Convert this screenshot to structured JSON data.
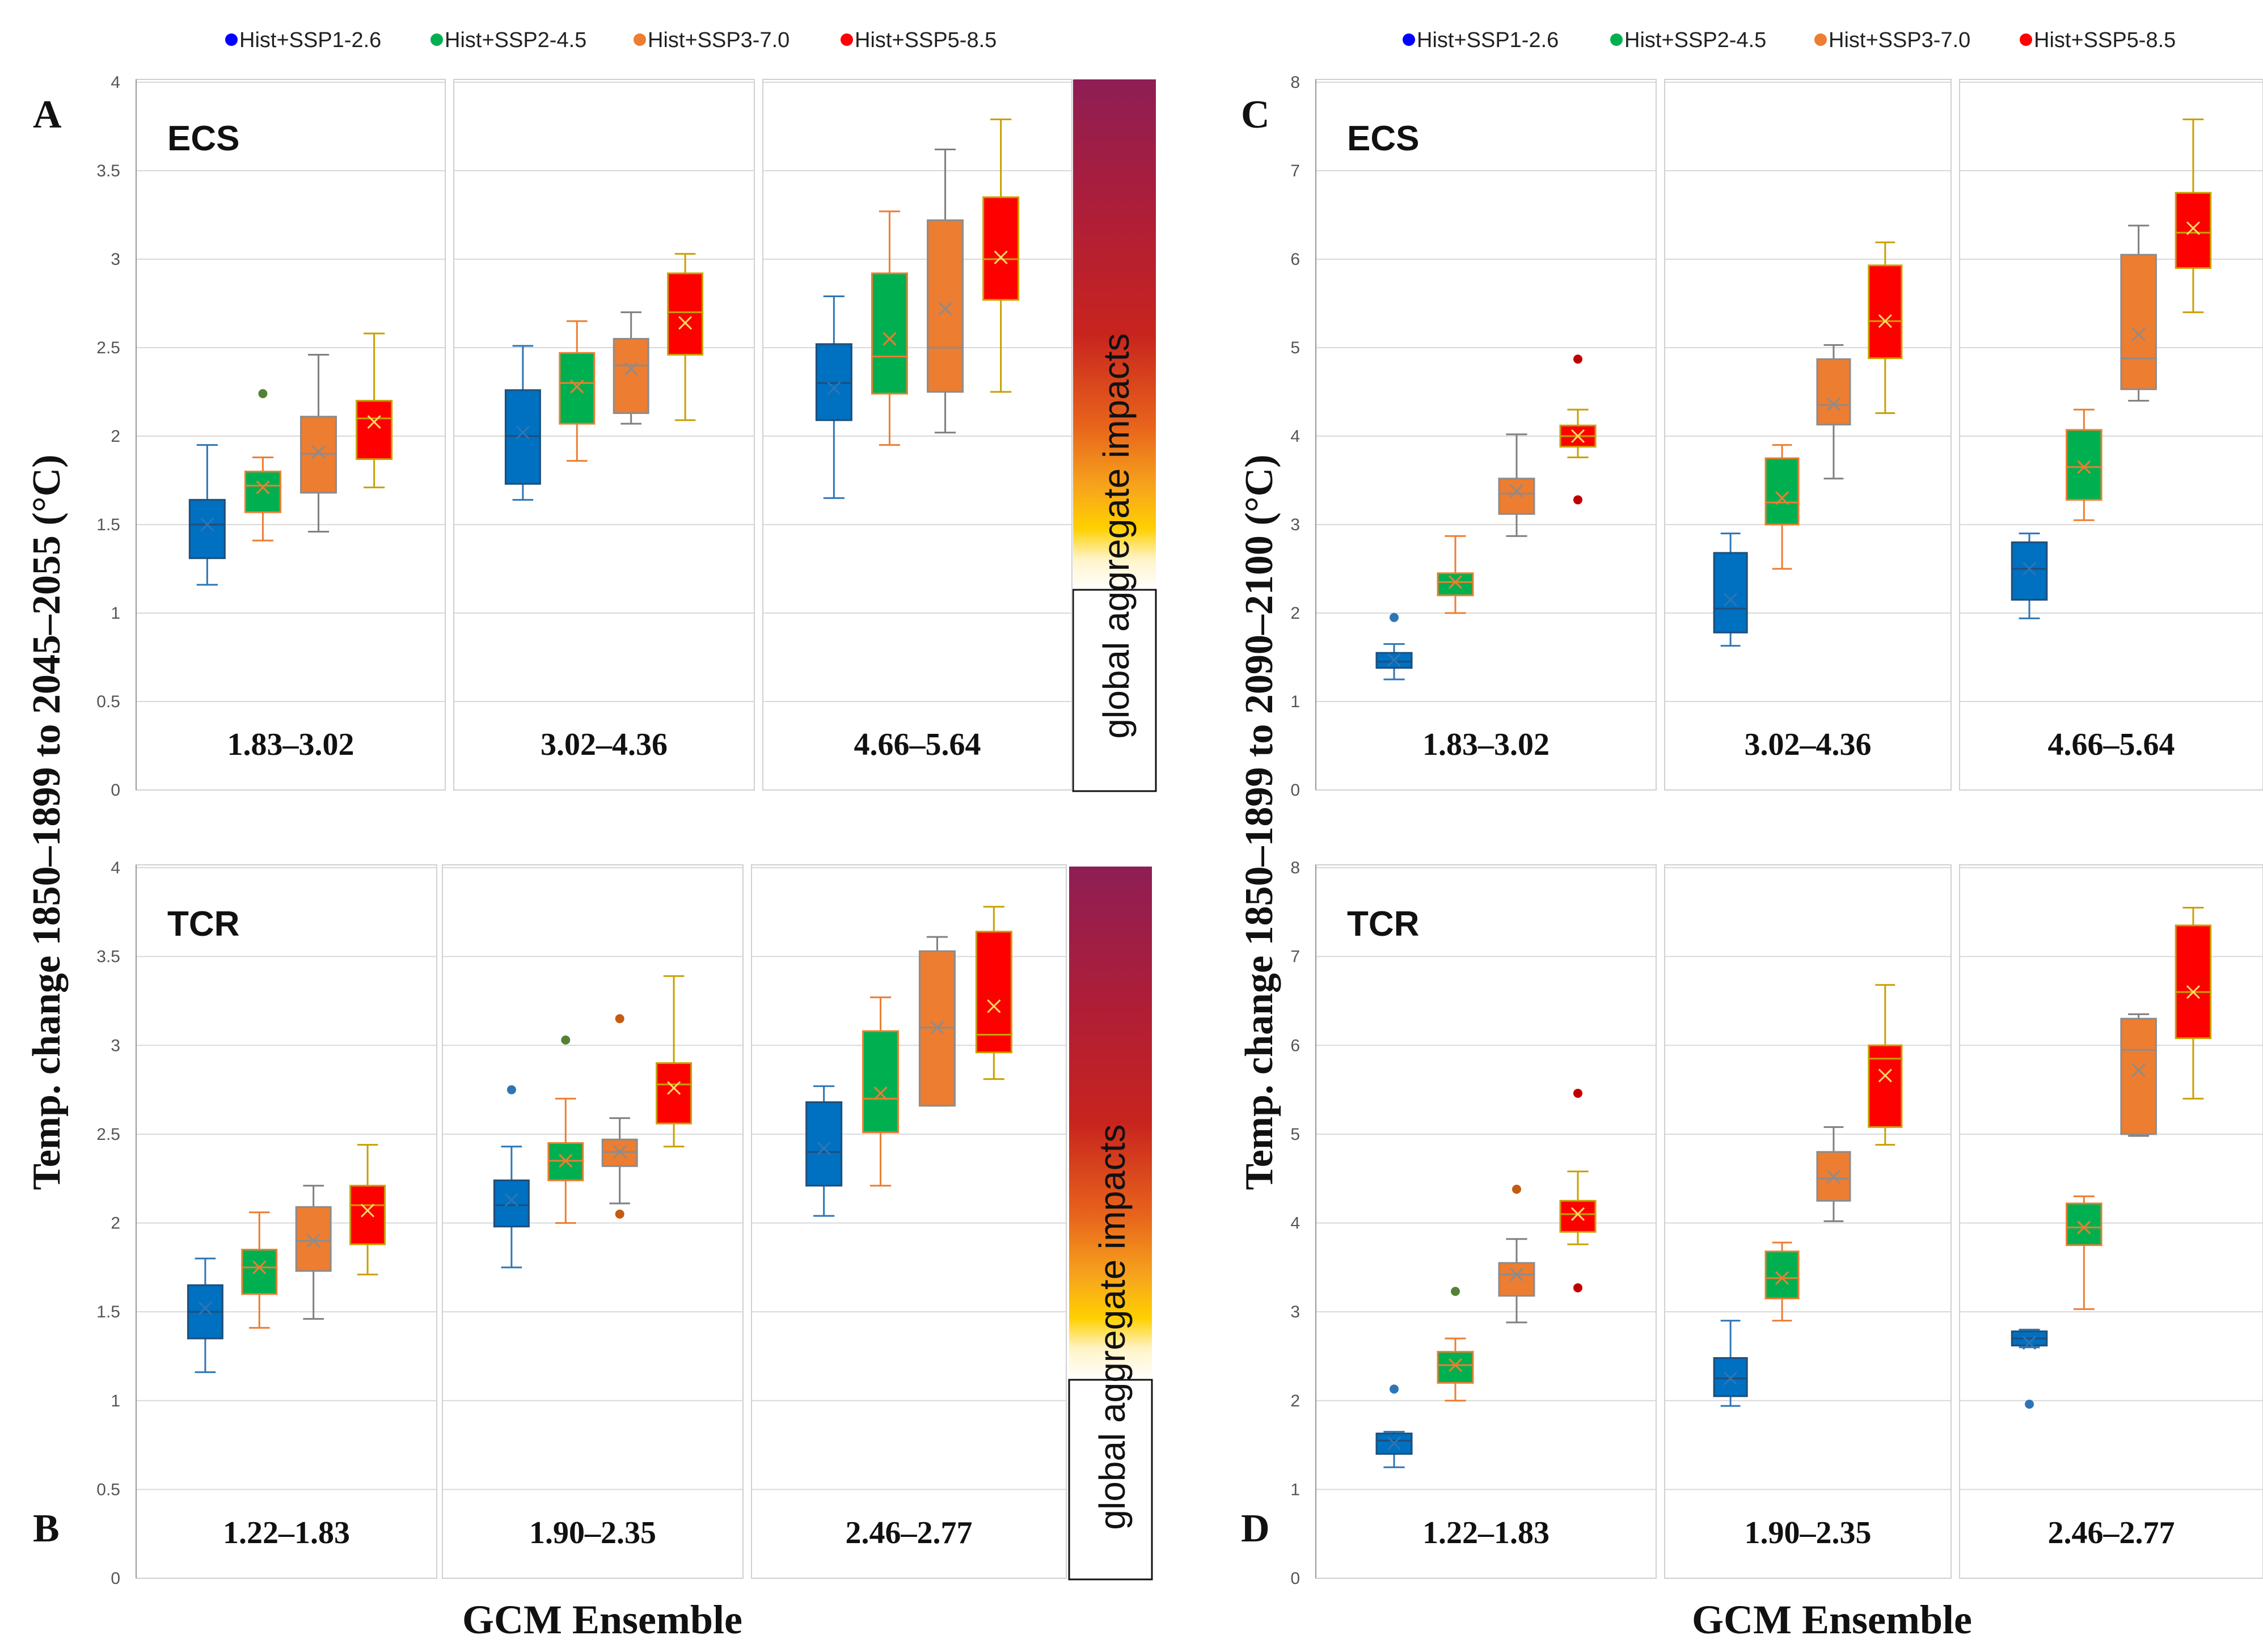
{
  "legend": [
    {
      "label": "Hist+SSP1-2.6",
      "color": "#0070C0"
    },
    {
      "label": "Hist+SSP2-4.5",
      "color": "#00B050"
    },
    {
      "label": "Hist+SSP3-7.0",
      "color": "#ED7D31"
    },
    {
      "label": "Hist+SSP5-8.5",
      "color": "#FF0000"
    }
  ],
  "yaxis_left": "Temp. change 1850–1899 to 2045–2055 (°C)",
  "yaxis_right": "Temp. change 1850–1899 to 2090–2100 (°C)",
  "xaxis_label": "GCM Ensemble",
  "impact_label": "global aggregate impacts",
  "chart_data": [
    {
      "panel": "A",
      "metric": "ECS",
      "type": "box",
      "title": "ECS",
      "xlabel": "GCM Ensemble",
      "ylabel": "Temp. change 1850–1899 to 2045–2055 (°C)",
      "ylim": [
        0,
        4
      ],
      "yticks": [
        "0",
        "0.5",
        "1",
        "1.5",
        "2",
        "2.5",
        "3",
        "3.5",
        "4"
      ],
      "groups": [
        {
          "range": "1.83–3.02",
          "boxes": [
            {
              "series": "Hist+SSP1-2.6",
              "min": 1.16,
              "q1": 1.31,
              "median": 1.5,
              "q3": 1.64,
              "max": 1.95,
              "mean": 1.5,
              "outliers": []
            },
            {
              "series": "Hist+SSP2-4.5",
              "min": 1.41,
              "q1": 1.57,
              "median": 1.72,
              "q3": 1.8,
              "max": 1.88,
              "mean": 1.71,
              "outliers": [
                2.24
              ]
            },
            {
              "series": "Hist+SSP3-7.0",
              "min": 1.46,
              "q1": 1.68,
              "median": 1.9,
              "q3": 2.11,
              "max": 2.46,
              "mean": 1.91,
              "outliers": []
            },
            {
              "series": "Hist+SSP5-8.5",
              "min": 1.71,
              "q1": 1.87,
              "median": 2.1,
              "q3": 2.2,
              "max": 2.58,
              "mean": 2.08,
              "outliers": []
            }
          ]
        },
        {
          "range": "3.02–4.36",
          "boxes": [
            {
              "series": "Hist+SSP1-2.6",
              "min": 1.64,
              "q1": 1.73,
              "median": 2.0,
              "q3": 2.26,
              "max": 2.51,
              "mean": 2.02,
              "outliers": []
            },
            {
              "series": "Hist+SSP2-4.5",
              "min": 1.86,
              "q1": 2.07,
              "median": 2.3,
              "q3": 2.47,
              "max": 2.65,
              "mean": 2.28,
              "outliers": []
            },
            {
              "series": "Hist+SSP3-7.0",
              "min": 2.07,
              "q1": 2.13,
              "median": 2.4,
              "q3": 2.55,
              "max": 2.7,
              "mean": 2.38,
              "outliers": []
            },
            {
              "series": "Hist+SSP5-8.5",
              "min": 2.09,
              "q1": 2.46,
              "median": 2.7,
              "q3": 2.92,
              "max": 3.03,
              "mean": 2.64,
              "outliers": []
            }
          ]
        },
        {
          "range": "4.66–5.64",
          "boxes": [
            {
              "series": "Hist+SSP1-2.6",
              "min": 1.65,
              "q1": 2.09,
              "median": 2.3,
              "q3": 2.52,
              "max": 2.79,
              "mean": 2.27,
              "outliers": []
            },
            {
              "series": "Hist+SSP2-4.5",
              "min": 1.95,
              "q1": 2.24,
              "median": 2.45,
              "q3": 2.92,
              "max": 3.27,
              "mean": 2.55,
              "outliers": []
            },
            {
              "series": "Hist+SSP3-7.0",
              "min": 2.02,
              "q1": 2.25,
              "median": 2.5,
              "q3": 3.22,
              "max": 3.62,
              "mean": 2.72,
              "outliers": []
            },
            {
              "series": "Hist+SSP5-8.5",
              "min": 2.25,
              "q1": 2.77,
              "median": 3.0,
              "q3": 3.35,
              "max": 3.79,
              "mean": 3.01,
              "outliers": []
            }
          ]
        }
      ]
    },
    {
      "panel": "B",
      "metric": "TCR",
      "type": "box",
      "title": "TCR",
      "xlabel": "GCM Ensemble",
      "ylabel": "Temp. change 1850–1899 to 2045–2055 (°C)",
      "ylim": [
        0,
        4
      ],
      "yticks": [
        "0",
        "0.5",
        "1",
        "1.5",
        "2",
        "2.5",
        "3",
        "3.5",
        "4"
      ],
      "groups": [
        {
          "range": "1.22–1.83",
          "boxes": [
            {
              "series": "Hist+SSP1-2.6",
              "min": 1.16,
              "q1": 1.35,
              "median": 1.5,
              "q3": 1.65,
              "max": 1.8,
              "mean": 1.52,
              "outliers": []
            },
            {
              "series": "Hist+SSP2-4.5",
              "min": 1.41,
              "q1": 1.6,
              "median": 1.75,
              "q3": 1.85,
              "max": 2.06,
              "mean": 1.75,
              "outliers": []
            },
            {
              "series": "Hist+SSP3-7.0",
              "min": 1.46,
              "q1": 1.73,
              "median": 1.9,
              "q3": 2.09,
              "max": 2.21,
              "mean": 1.9,
              "outliers": []
            },
            {
              "series": "Hist+SSP5-8.5",
              "min": 1.71,
              "q1": 1.88,
              "median": 2.1,
              "q3": 2.21,
              "max": 2.44,
              "mean": 2.07,
              "outliers": []
            }
          ]
        },
        {
          "range": "1.90–2.35",
          "boxes": [
            {
              "series": "Hist+SSP1-2.6",
              "min": 1.75,
              "q1": 1.98,
              "median": 2.1,
              "q3": 2.24,
              "max": 2.43,
              "mean": 2.13,
              "outliers": [
                2.75
              ]
            },
            {
              "series": "Hist+SSP2-4.5",
              "min": 2.0,
              "q1": 2.24,
              "median": 2.35,
              "q3": 2.45,
              "max": 2.7,
              "mean": 2.35,
              "outliers": [
                3.03
              ]
            },
            {
              "series": "Hist+SSP3-7.0",
              "min": 2.11,
              "q1": 2.32,
              "median": 2.4,
              "q3": 2.47,
              "max": 2.59,
              "mean": 2.4,
              "outliers": [
                2.05,
                3.15
              ]
            },
            {
              "series": "Hist+SSP5-8.5",
              "min": 2.43,
              "q1": 2.56,
              "median": 2.78,
              "q3": 2.9,
              "max": 3.39,
              "mean": 2.76,
              "outliers": []
            }
          ]
        },
        {
          "range": "2.46–2.77",
          "boxes": [
            {
              "series": "Hist+SSP1-2.6",
              "min": 2.04,
              "q1": 2.21,
              "median": 2.4,
              "q3": 2.68,
              "max": 2.77,
              "mean": 2.42,
              "outliers": []
            },
            {
              "series": "Hist+SSP2-4.5",
              "min": 2.21,
              "q1": 2.51,
              "median": 2.7,
              "q3": 3.08,
              "max": 3.27,
              "mean": 2.73,
              "outliers": []
            },
            {
              "series": "Hist+SSP3-7.0",
              "min": 2.66,
              "q1": 2.66,
              "median": 3.1,
              "q3": 3.53,
              "max": 3.61,
              "mean": 3.1,
              "outliers": []
            },
            {
              "series": "Hist+SSP5-8.5",
              "min": 2.81,
              "q1": 2.96,
              "median": 3.06,
              "q3": 3.64,
              "max": 3.78,
              "mean": 3.22,
              "outliers": []
            }
          ]
        }
      ]
    },
    {
      "panel": "C",
      "metric": "ECS",
      "type": "box",
      "title": "ECS",
      "xlabel": "GCM Ensemble",
      "ylabel": "Temp. change 1850–1899 to 2090–2100 (°C)",
      "ylim": [
        0,
        8
      ],
      "yticks": [
        "0",
        "1",
        "2",
        "3",
        "4",
        "5",
        "6",
        "7",
        "8"
      ],
      "groups": [
        {
          "range": "1.83–3.02",
          "boxes": [
            {
              "series": "Hist+SSP1-2.6",
              "min": 1.25,
              "q1": 1.38,
              "median": 1.45,
              "q3": 1.55,
              "max": 1.65,
              "mean": 1.47,
              "outliers": [
                1.95
              ]
            },
            {
              "series": "Hist+SSP2-4.5",
              "min": 2.0,
              "q1": 2.2,
              "median": 2.35,
              "q3": 2.45,
              "max": 2.87,
              "mean": 2.35,
              "outliers": []
            },
            {
              "series": "Hist+SSP3-7.0",
              "min": 2.87,
              "q1": 3.12,
              "median": 3.35,
              "q3": 3.52,
              "max": 4.02,
              "mean": 3.38,
              "outliers": []
            },
            {
              "series": "Hist+SSP5-8.5",
              "min": 3.76,
              "q1": 3.88,
              "median": 4.0,
              "q3": 4.12,
              "max": 4.3,
              "mean": 4.0,
              "outliers": [
                3.28,
                4.87
              ]
            }
          ]
        },
        {
          "range": "3.02–4.36",
          "boxes": [
            {
              "series": "Hist+SSP1-2.6",
              "min": 1.63,
              "q1": 1.78,
              "median": 2.05,
              "q3": 2.68,
              "max": 2.9,
              "mean": 2.15,
              "outliers": []
            },
            {
              "series": "Hist+SSP2-4.5",
              "min": 2.5,
              "q1": 3.0,
              "median": 3.25,
              "q3": 3.75,
              "max": 3.9,
              "mean": 3.3,
              "outliers": []
            },
            {
              "series": "Hist+SSP3-7.0",
              "min": 3.52,
              "q1": 4.13,
              "median": 4.35,
              "q3": 4.87,
              "max": 5.03,
              "mean": 4.36,
              "outliers": []
            },
            {
              "series": "Hist+SSP5-8.5",
              "min": 4.26,
              "q1": 4.88,
              "median": 5.3,
              "q3": 5.93,
              "max": 6.19,
              "mean": 5.3,
              "outliers": []
            }
          ]
        },
        {
          "range": "4.66–5.64",
          "boxes": [
            {
              "series": "Hist+SSP1-2.6",
              "min": 1.94,
              "q1": 2.15,
              "median": 2.5,
              "q3": 2.8,
              "max": 2.9,
              "mean": 2.5,
              "outliers": []
            },
            {
              "series": "Hist+SSP2-4.5",
              "min": 3.05,
              "q1": 3.28,
              "median": 3.65,
              "q3": 4.07,
              "max": 4.3,
              "mean": 3.65,
              "outliers": []
            },
            {
              "series": "Hist+SSP3-7.0",
              "min": 4.4,
              "q1": 4.53,
              "median": 4.88,
              "q3": 6.05,
              "max": 6.38,
              "mean": 5.15,
              "outliers": []
            },
            {
              "series": "Hist+SSP5-8.5",
              "min": 5.4,
              "q1": 5.9,
              "median": 6.3,
              "q3": 6.75,
              "max": 7.58,
              "mean": 6.35,
              "outliers": []
            }
          ]
        }
      ]
    },
    {
      "panel": "D",
      "metric": "TCR",
      "type": "box",
      "title": "TCR",
      "xlabel": "GCM Ensemble",
      "ylabel": "Temp. change 1850–1899 to 2090–2100 (°C)",
      "ylim": [
        0,
        8
      ],
      "yticks": [
        "0",
        "1",
        "2",
        "3",
        "4",
        "5",
        "6",
        "7",
        "8"
      ],
      "groups": [
        {
          "range": "1.22–1.83",
          "boxes": [
            {
              "series": "Hist+SSP1-2.6",
              "min": 1.25,
              "q1": 1.4,
              "median": 1.55,
              "q3": 1.63,
              "max": 1.65,
              "mean": 1.52,
              "outliers": [
                2.13
              ]
            },
            {
              "series": "Hist+SSP2-4.5",
              "min": 2.0,
              "q1": 2.2,
              "median": 2.4,
              "q3": 2.55,
              "max": 2.7,
              "mean": 2.4,
              "outliers": [
                3.23
              ]
            },
            {
              "series": "Hist+SSP3-7.0",
              "min": 2.88,
              "q1": 3.18,
              "median": 3.42,
              "q3": 3.55,
              "max": 3.82,
              "mean": 3.42,
              "outliers": [
                4.38
              ]
            },
            {
              "series": "Hist+SSP5-8.5",
              "min": 3.76,
              "q1": 3.9,
              "median": 4.1,
              "q3": 4.25,
              "max": 4.58,
              "mean": 4.1,
              "outliers": [
                3.27,
                5.46
              ]
            }
          ]
        },
        {
          "range": "1.90–2.35",
          "boxes": [
            {
              "series": "Hist+SSP1-2.6",
              "min": 1.94,
              "q1": 2.05,
              "median": 2.25,
              "q3": 2.48,
              "max": 2.9,
              "mean": 2.25,
              "outliers": []
            },
            {
              "series": "Hist+SSP2-4.5",
              "min": 2.9,
              "q1": 3.15,
              "median": 3.38,
              "q3": 3.68,
              "max": 3.78,
              "mean": 3.38,
              "outliers": []
            },
            {
              "series": "Hist+SSP3-7.0",
              "min": 4.02,
              "q1": 4.25,
              "median": 4.5,
              "q3": 4.8,
              "max": 5.08,
              "mean": 4.52,
              "outliers": []
            },
            {
              "series": "Hist+SSP5-8.5",
              "min": 4.88,
              "q1": 5.08,
              "median": 5.85,
              "q3": 6.0,
              "max": 6.68,
              "mean": 5.66,
              "outliers": []
            }
          ]
        },
        {
          "range": "2.46–2.77",
          "boxes": [
            {
              "series": "Hist+SSP1-2.6",
              "min": 2.6,
              "q1": 2.62,
              "median": 2.7,
              "q3": 2.78,
              "max": 2.8,
              "mean": 2.65,
              "outliers": [
                1.96
              ]
            },
            {
              "series": "Hist+SSP2-4.5",
              "min": 3.03,
              "q1": 3.75,
              "median": 3.95,
              "q3": 4.22,
              "max": 4.3,
              "mean": 3.95,
              "outliers": []
            },
            {
              "series": "Hist+SSP3-7.0",
              "min": 4.98,
              "q1": 5.0,
              "median": 5.95,
              "q3": 6.3,
              "max": 6.35,
              "mean": 5.72,
              "outliers": []
            },
            {
              "series": "Hist+SSP5-8.5",
              "min": 5.4,
              "q1": 6.08,
              "median": 6.6,
              "q3": 7.35,
              "max": 7.55,
              "mean": 6.6,
              "outliers": []
            }
          ]
        }
      ]
    }
  ]
}
